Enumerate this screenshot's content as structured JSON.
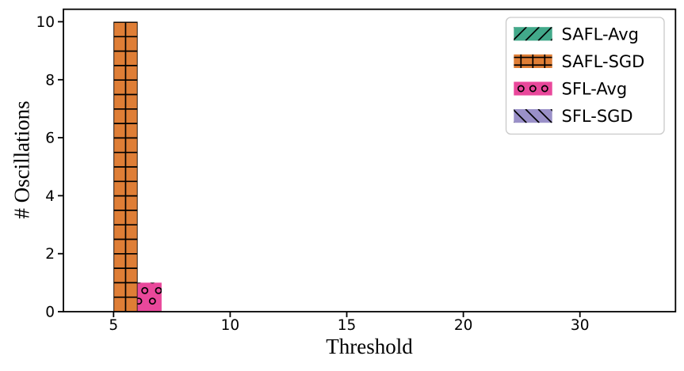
{
  "figure": {
    "background": "#ffffff",
    "xlabel": "Threshold",
    "ylabel": "# Oscillations"
  },
  "chart_data": {
    "type": "bar",
    "title": "",
    "xlabel": "Threshold",
    "ylabel": "# Oscillations",
    "categories": [
      "5",
      "10",
      "15",
      "20",
      "30"
    ],
    "series": [
      {
        "name": "SAFL-Avg",
        "color": "#42a98a",
        "hatch": "/",
        "values": [
          0,
          0,
          0,
          0,
          0
        ]
      },
      {
        "name": "SAFL-SGD",
        "color": "#df7e36",
        "hatch": "+",
        "values": [
          10,
          0,
          0,
          0,
          0
        ]
      },
      {
        "name": "SFL-Avg",
        "color": "#e9489b",
        "hatch": "o",
        "values": [
          1,
          0,
          0,
          0,
          0
        ]
      },
      {
        "name": "SFL-SGD",
        "color": "#9a90c8",
        "hatch": "\\",
        "values": [
          0,
          0,
          0,
          0,
          0
        ]
      }
    ],
    "ylim": [
      0,
      10.43
    ],
    "yticks": [
      0,
      2,
      4,
      6,
      8,
      10
    ],
    "grid": false,
    "legend_position": "upper right",
    "hatch_color": "#000000",
    "spine_color": "#000000",
    "legend_border_color": "#c9c9c9",
    "legend_background": "#ffffff"
  }
}
